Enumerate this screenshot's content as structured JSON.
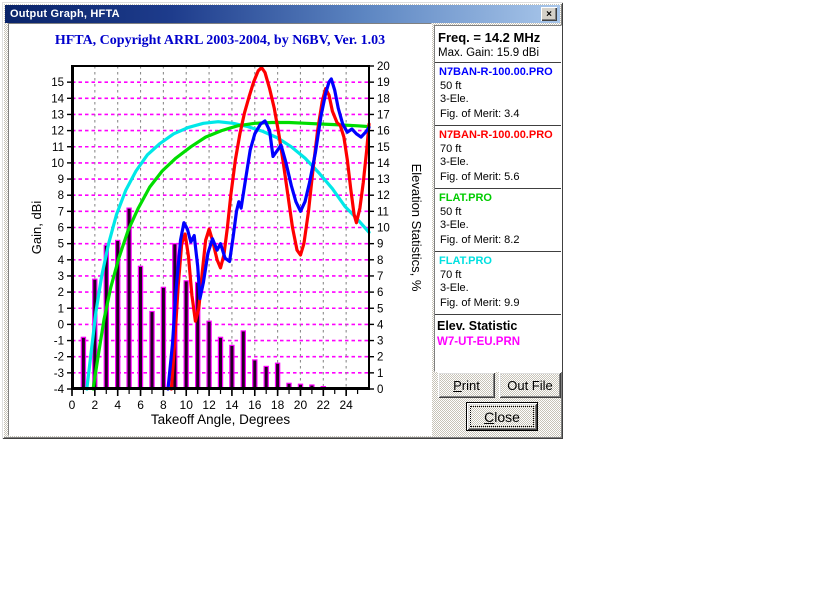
{
  "window": {
    "title": "Output Graph, HFTA",
    "close_glyph": "×"
  },
  "chart_data": {
    "type": "combo-bar-line",
    "title": "HFTA, Copyright ARRL 2003-2004, by N6BV, Ver. 1.03",
    "xlabel": "Takeoff Angle, Degrees",
    "ylabel_left": "Gain, dBi",
    "ylabel_right": "Elevation Statistics, %",
    "xlim": [
      0,
      26
    ],
    "x_tick_labels": [
      0,
      2,
      4,
      6,
      8,
      10,
      12,
      14,
      16,
      18,
      20,
      22,
      24
    ],
    "x_minor_step": 1,
    "ylim_left": [
      -4,
      16
    ],
    "y_left_tick_labels": [
      -4,
      -3,
      -2,
      -1,
      0,
      1,
      2,
      3,
      4,
      5,
      6,
      7,
      8,
      9,
      10,
      11,
      12,
      13,
      14,
      15
    ],
    "ylim_right": [
      0,
      20
    ],
    "y_right_tick_labels": [
      0,
      1,
      2,
      3,
      4,
      5,
      6,
      7,
      8,
      9,
      10,
      11,
      12,
      13,
      14,
      15,
      16,
      17,
      18,
      19,
      20
    ],
    "grid": {
      "h_values": [
        -3,
        -2,
        -1,
        0,
        1,
        2,
        3,
        4,
        5,
        6,
        7,
        8,
        9,
        10,
        11,
        12,
        13,
        14,
        15
      ],
      "h_color": "#ff00ff",
      "v_values": [
        2,
        4,
        6,
        8,
        10,
        12,
        14,
        16,
        18,
        20,
        22,
        24
      ],
      "v_color": "#8c8c8c",
      "legend_position": "right-panel"
    },
    "bars": {
      "name": "W7-UT-EU.PRN",
      "axis": "right",
      "outline": "#ff00ff",
      "fill": "#220022",
      "values": [
        [
          1,
          3.2
        ],
        [
          2,
          6.8
        ],
        [
          3,
          8.9
        ],
        [
          4,
          9.2
        ],
        [
          5,
          11.2
        ],
        [
          6,
          7.6
        ],
        [
          7,
          4.8
        ],
        [
          8,
          6.3
        ],
        [
          9,
          9.0
        ],
        [
          10,
          6.7
        ],
        [
          11,
          6.6
        ],
        [
          12,
          4.2
        ],
        [
          13,
          3.2
        ],
        [
          14,
          2.7
        ],
        [
          15,
          3.6
        ],
        [
          16,
          1.8
        ],
        [
          17,
          1.4
        ],
        [
          18,
          1.6
        ],
        [
          19,
          0.35
        ],
        [
          20,
          0.3
        ],
        [
          21,
          0.25
        ],
        [
          22,
          0.15
        ]
      ]
    },
    "series": [
      {
        "name": "N7BAN-R-100.00.PRO 50 ft",
        "color": "#0000ff",
        "axis": "left",
        "points": [
          [
            8.4,
            -4
          ],
          [
            8.8,
            -1.2
          ],
          [
            9.1,
            2.0
          ],
          [
            9.5,
            5.2
          ],
          [
            9.8,
            6.3
          ],
          [
            10.1,
            5.9
          ],
          [
            10.4,
            5.1
          ],
          [
            10.7,
            5.5
          ],
          [
            11.0,
            3.6
          ],
          [
            11.2,
            1.6
          ],
          [
            11.5,
            2.6
          ],
          [
            11.9,
            4.4
          ],
          [
            12.3,
            5.3
          ],
          [
            12.7,
            4.6
          ],
          [
            13.0,
            5.0
          ],
          [
            13.4,
            4.1
          ],
          [
            13.8,
            3.9
          ],
          [
            14.1,
            5.4
          ],
          [
            14.4,
            7.0
          ],
          [
            14.6,
            7.6
          ],
          [
            14.8,
            7.2
          ],
          [
            15.2,
            9.0
          ],
          [
            15.6,
            10.8
          ],
          [
            16.0,
            11.8
          ],
          [
            16.5,
            12.4
          ],
          [
            16.9,
            12.6
          ],
          [
            17.3,
            12.0
          ],
          [
            17.6,
            10.4
          ],
          [
            17.9,
            10.7
          ],
          [
            18.3,
            11.1
          ],
          [
            18.7,
            10.1
          ],
          [
            19.2,
            8.6
          ],
          [
            19.6,
            7.6
          ],
          [
            20.0,
            7.0
          ],
          [
            20.4,
            7.6
          ],
          [
            20.8,
            8.8
          ],
          [
            21.3,
            10.6
          ],
          [
            21.8,
            12.9
          ],
          [
            22.2,
            14.3
          ],
          [
            22.5,
            15.0
          ],
          [
            22.7,
            15.2
          ],
          [
            23.0,
            14.5
          ],
          [
            23.3,
            13.4
          ],
          [
            23.7,
            12.4
          ],
          [
            24.1,
            11.9
          ],
          [
            24.5,
            12.1
          ],
          [
            24.9,
            11.8
          ],
          [
            25.3,
            11.6
          ],
          [
            25.7,
            11.9
          ],
          [
            26,
            12.2
          ]
        ]
      },
      {
        "name": "N7BAN-R-100.00.PRO 70 ft",
        "color": "#ff0000",
        "axis": "left",
        "points": [
          [
            8.7,
            -4
          ],
          [
            9.0,
            -1.0
          ],
          [
            9.3,
            2.4
          ],
          [
            9.6,
            5.0
          ],
          [
            9.9,
            5.6
          ],
          [
            10.2,
            4.2
          ],
          [
            10.5,
            1.8
          ],
          [
            10.8,
            0.2
          ],
          [
            11.1,
            1.0
          ],
          [
            11.4,
            3.2
          ],
          [
            11.7,
            5.2
          ],
          [
            12.0,
            5.9
          ],
          [
            12.3,
            5.2
          ],
          [
            12.7,
            4.0
          ],
          [
            13.0,
            3.5
          ],
          [
            13.3,
            4.3
          ],
          [
            13.6,
            6.0
          ],
          [
            13.9,
            8.0
          ],
          [
            14.3,
            10.2
          ],
          [
            14.7,
            11.8
          ],
          [
            15.1,
            13.1
          ],
          [
            15.5,
            14.1
          ],
          [
            15.9,
            15.0
          ],
          [
            16.3,
            15.7
          ],
          [
            16.6,
            15.9
          ],
          [
            16.9,
            15.6
          ],
          [
            17.3,
            14.6
          ],
          [
            17.7,
            13.4
          ],
          [
            18.1,
            11.8
          ],
          [
            18.5,
            10.0
          ],
          [
            18.9,
            8.0
          ],
          [
            19.3,
            6.0
          ],
          [
            19.7,
            4.6
          ],
          [
            20.0,
            4.3
          ],
          [
            20.3,
            5.0
          ],
          [
            20.7,
            7.0
          ],
          [
            21.1,
            9.6
          ],
          [
            21.5,
            12.0
          ],
          [
            21.9,
            13.8
          ],
          [
            22.2,
            14.6
          ],
          [
            22.5,
            14.2
          ],
          [
            22.8,
            13.2
          ],
          [
            23.2,
            12.5
          ],
          [
            23.5,
            12.3
          ],
          [
            23.8,
            11.6
          ],
          [
            24.1,
            10.2
          ],
          [
            24.4,
            8.4
          ],
          [
            24.7,
            6.8
          ],
          [
            24.9,
            6.3
          ],
          [
            25.2,
            7.2
          ],
          [
            25.5,
            8.8
          ],
          [
            25.8,
            10.8
          ],
          [
            26,
            12.4
          ]
        ]
      },
      {
        "name": "FLAT.PRO 50 ft",
        "color": "#00dd00",
        "axis": "left",
        "points": [
          [
            1.85,
            -4
          ],
          [
            2.3,
            -1.9
          ],
          [
            2.8,
            0.3
          ],
          [
            3.4,
            2.3
          ],
          [
            4.1,
            4.1
          ],
          [
            4.9,
            5.8
          ],
          [
            5.8,
            7.2
          ],
          [
            6.8,
            8.5
          ],
          [
            7.9,
            9.5
          ],
          [
            9.1,
            10.3
          ],
          [
            10.4,
            11.0
          ],
          [
            11.7,
            11.6
          ],
          [
            13.1,
            12.0
          ],
          [
            14.5,
            12.3
          ],
          [
            16.0,
            12.45
          ],
          [
            17.5,
            12.5
          ],
          [
            19.0,
            12.5
          ],
          [
            20.5,
            12.45
          ],
          [
            22.0,
            12.4
          ],
          [
            23.5,
            12.35
          ],
          [
            25.0,
            12.3
          ],
          [
            26,
            12.25
          ]
        ]
      },
      {
        "name": "FLAT.PRO 70 ft",
        "color": "#00e8e8",
        "axis": "left",
        "points": [
          [
            1.3,
            -4
          ],
          [
            1.7,
            -1.6
          ],
          [
            2.1,
            0.8
          ],
          [
            2.6,
            3.0
          ],
          [
            3.2,
            5.0
          ],
          [
            3.9,
            6.8
          ],
          [
            4.7,
            8.3
          ],
          [
            5.6,
            9.5
          ],
          [
            6.6,
            10.5
          ],
          [
            7.7,
            11.2
          ],
          [
            8.9,
            11.8
          ],
          [
            10.2,
            12.2
          ],
          [
            11.5,
            12.45
          ],
          [
            12.8,
            12.55
          ],
          [
            14.1,
            12.45
          ],
          [
            15.4,
            12.25
          ],
          [
            16.7,
            11.95
          ],
          [
            18.0,
            11.55
          ],
          [
            19.2,
            11.0
          ],
          [
            20.4,
            10.3
          ],
          [
            21.6,
            9.4
          ],
          [
            22.8,
            8.4
          ],
          [
            23.9,
            7.3
          ],
          [
            25.0,
            6.5
          ],
          [
            26,
            5.7
          ]
        ]
      }
    ]
  },
  "panel": {
    "freq": "Freq. = 14.2 MHz",
    "max_gain": "Max. Gain: 15.9 dBi",
    "entries": [
      {
        "file": "N7BAN-R-100.00.PRO",
        "color": "#0000ff",
        "height": "50 ft",
        "ele": "3-Ele.",
        "merit": "Fig. of Merit:  3.4"
      },
      {
        "file": "N7BAN-R-100.00.PRO",
        "color": "#ff0000",
        "height": "70 ft",
        "ele": "3-Ele.",
        "merit": "Fig. of Merit:  5.6"
      },
      {
        "file": "FLAT.PRO",
        "color": "#00cc00",
        "height": "50 ft",
        "ele": "3-Ele.",
        "merit": "Fig. of Merit:  8.2"
      },
      {
        "file": "FLAT.PRO",
        "color": "#00e0e0",
        "height": "70 ft",
        "ele": "3-Ele.",
        "merit": "Fig. of Merit:  9.9"
      }
    ],
    "elev_label": "Elev. Statistic",
    "elev_file": "W7-UT-EU.PRN",
    "elev_color": "#ff00ff"
  },
  "buttons": {
    "print": {
      "label": "Print",
      "underline": 0
    },
    "outfile": {
      "label": "Out File",
      "underline": -1
    },
    "close": {
      "label": "Close",
      "underline": 0
    }
  }
}
